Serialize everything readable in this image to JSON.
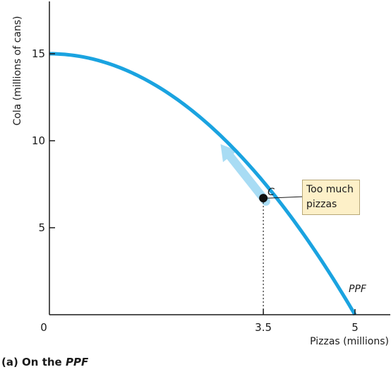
{
  "chart_data": {
    "type": "line",
    "xlabel": "Pizzas (millions)",
    "ylabel": "Cola (millions of cans)",
    "xlim": [
      0,
      5.4
    ],
    "ylim": [
      0,
      18
    ],
    "x_ticks": [
      "0",
      "3.5",
      "5"
    ],
    "x_tick_values": [
      0,
      3.5,
      5
    ],
    "y_ticks": [
      "5",
      "10",
      "15"
    ],
    "y_tick_values": [
      5,
      10,
      15
    ],
    "grid": false,
    "series": [
      {
        "name": "PPF",
        "x": [
          0,
          0.5,
          1,
          1.5,
          2,
          2.5,
          3,
          3.5,
          4,
          4.5,
          5
        ],
        "y": [
          15,
          14.85,
          14.4,
          13.65,
          12.6,
          11.25,
          9.6,
          7.65,
          5.4,
          2.85,
          0
        ],
        "color": "#1aa3e0"
      }
    ],
    "points": [
      {
        "label": "C",
        "x": 3.5,
        "y": 6.7
      }
    ],
    "arrow": {
      "from": [
        3.5,
        6.7
      ],
      "to": [
        2.8,
        9.8
      ],
      "color": "#a8dcf4"
    },
    "annotations": [
      {
        "text": "Too much pizzas",
        "line1": "Too much",
        "line2": "pizzas"
      }
    ],
    "curve_label": "PPF",
    "caption": {
      "prefix": "(a) On the ",
      "emph": "PPF"
    }
  }
}
